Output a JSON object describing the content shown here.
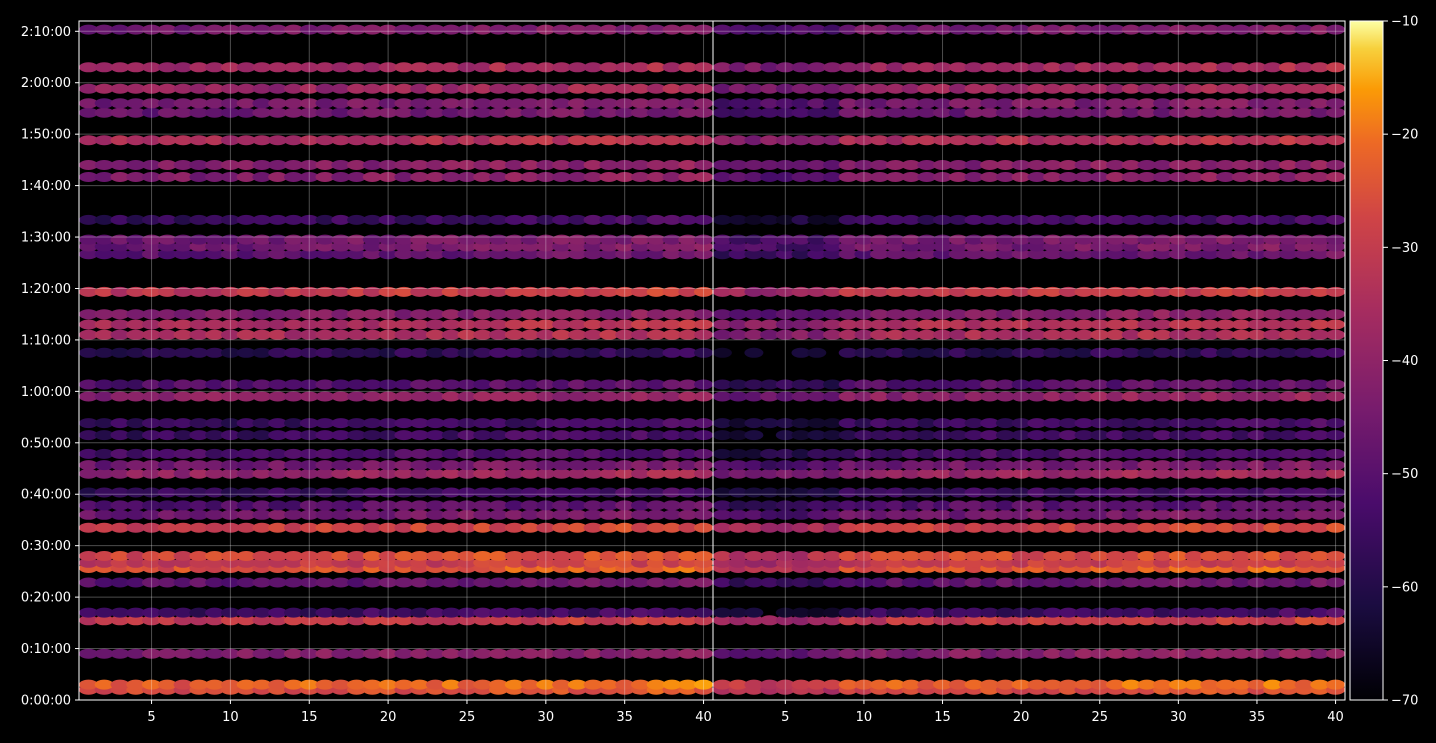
{
  "chart_data": {
    "type": "heatmap",
    "title": "",
    "xlabel": "",
    "ylabel": "",
    "background": "#000000",
    "colormap": "inferno",
    "grid": true,
    "panels": [
      {
        "name": "",
        "x_range": [
          1,
          40
        ],
        "xticks": [
          5,
          10,
          15,
          20,
          25,
          30,
          35,
          40
        ],
        "xtick_labels": [
          "5",
          "10",
          "15",
          "20",
          "25",
          "30",
          "35",
          "40"
        ]
      },
      {
        "name": "",
        "x_range": [
          1,
          40
        ],
        "xticks": [
          5,
          10,
          15,
          20,
          25,
          30,
          35,
          40
        ],
        "xtick_labels": [
          "5",
          "10",
          "15",
          "20",
          "25",
          "30",
          "35",
          "40"
        ]
      }
    ],
    "y_range_seconds": [
      0,
      7920
    ],
    "yticks_seconds": [
      0,
      600,
      1200,
      1800,
      2400,
      3000,
      3600,
      4200,
      4800,
      5400,
      6000,
      6600,
      7200,
      7800
    ],
    "ytick_labels": [
      "0:00:00",
      "0:10:00",
      "0:20:00",
      "0:30:00",
      "0:40:00",
      "0:50:00",
      "1:00:00",
      "1:10:00",
      "1:20:00",
      "1:30:00",
      "1:40:00",
      "1:50:00",
      "2:00:00",
      "2:10:00"
    ],
    "colorbar": {
      "range": [
        -70,
        -10
      ],
      "ticks": [
        -70,
        -60,
        -50,
        -40,
        -30,
        -20,
        -10
      ],
      "tick_labels": [
        "−70",
        "−60",
        "−50",
        "−40",
        "−30",
        "−20",
        "−10"
      ]
    },
    "bands": [
      {
        "time_s": 120,
        "level": -26
      },
      {
        "time_s": 180,
        "level": -22
      },
      {
        "time_s": 540,
        "level": -42
      },
      {
        "time_s": 930,
        "level": -30
      },
      {
        "time_s": 1020,
        "level": -55
      },
      {
        "time_s": 1370,
        "level": -48
      },
      {
        "time_s": 1540,
        "level": -24
      },
      {
        "time_s": 1600,
        "level": -30
      },
      {
        "time_s": 1680,
        "level": -26
      },
      {
        "time_s": 2010,
        "level": -28
      },
      {
        "time_s": 2160,
        "level": -45
      },
      {
        "time_s": 2270,
        "level": -50
      },
      {
        "time_s": 2420,
        "level": -55
      },
      {
        "time_s": 2640,
        "level": -38
      },
      {
        "time_s": 2740,
        "level": -45
      },
      {
        "time_s": 2870,
        "level": -52
      },
      {
        "time_s": 3090,
        "level": -55
      },
      {
        "time_s": 3230,
        "level": -55
      },
      {
        "time_s": 3540,
        "level": -40
      },
      {
        "time_s": 3680,
        "level": -50
      },
      {
        "time_s": 4050,
        "level": -58
      },
      {
        "time_s": 4260,
        "level": -35
      },
      {
        "time_s": 4380,
        "level": -34
      },
      {
        "time_s": 4500,
        "level": -42
      },
      {
        "time_s": 4760,
        "level": -30
      },
      {
        "time_s": 5200,
        "level": -48
      },
      {
        "time_s": 5290,
        "level": -45
      },
      {
        "time_s": 5370,
        "level": -45
      },
      {
        "time_s": 5600,
        "level": -55
      },
      {
        "time_s": 6100,
        "level": -42
      },
      {
        "time_s": 6240,
        "level": -42
      },
      {
        "time_s": 6530,
        "level": -34
      },
      {
        "time_s": 6850,
        "level": -46
      },
      {
        "time_s": 6960,
        "level": -44
      },
      {
        "time_s": 7130,
        "level": -38
      },
      {
        "time_s": 7380,
        "level": -36
      },
      {
        "time_s": 7820,
        "level": -44
      }
    ]
  }
}
